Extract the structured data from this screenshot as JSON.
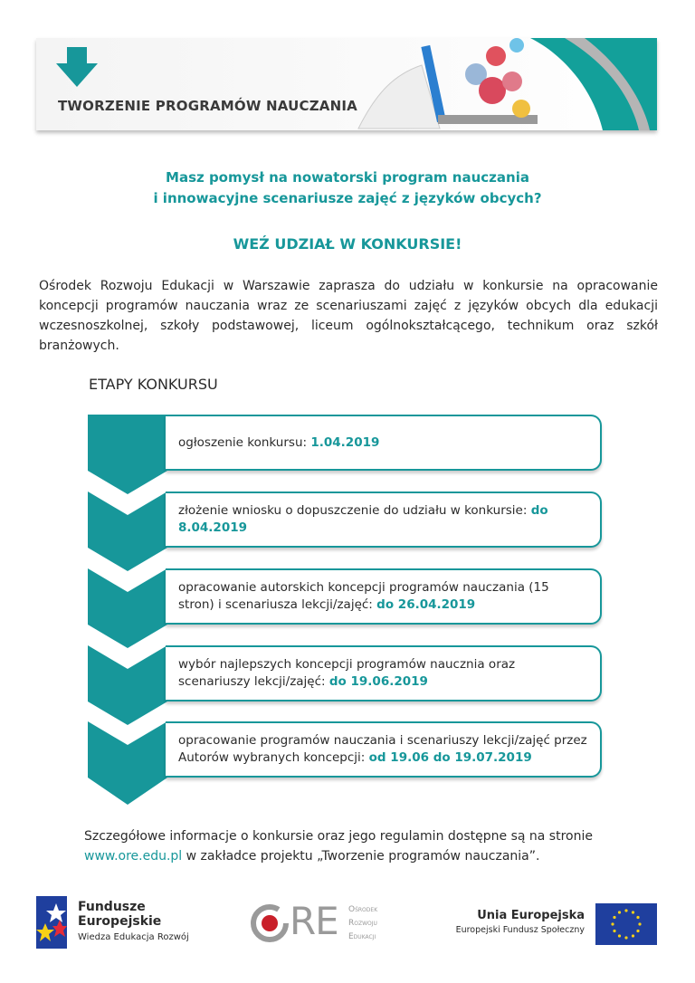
{
  "banner": {
    "title": "TWORZENIE PROGRAMÓW NAUCZANIA",
    "icon": "arrow-down-icon"
  },
  "headline": {
    "line1": "Masz pomysł na nowatorski program nauczania",
    "line2": "i innowacyjne scenariusze zajęć z języków obcych?",
    "cta": "WEŹ UDZIAŁ W KONKURSIE!"
  },
  "intro": "Ośrodek Rozwoju Edukacji w Warszawie zaprasza do udziału w konkursie na opracowanie koncepcji programów nauczania wraz ze scenariuszami zajęć z języków obcych dla edukacji wczesnoszkolnej, szkoły podstawowej, liceum ogólnokształcącego, technikum oraz szkół branżowych.",
  "stages": {
    "heading": "ETAPY KONKURSU",
    "items": [
      {
        "text": "ogłoszenie konkursu: ",
        "date": "1.04.2019"
      },
      {
        "text": "złożenie wniosku o dopuszczenie do udziału w konkursie: ",
        "date": "do 8.04.2019"
      },
      {
        "text": "opracowanie autorskich koncepcji programów nauczania (15 stron) i scenariusza lekcji/zajęć: ",
        "date": "do 26.04.2019"
      },
      {
        "text": "wybór najlepszych koncepcji programów naucznia oraz scenariuszy lekcji/zajęć: ",
        "date": "do 19.06.2019"
      },
      {
        "text": "opracowanie programów nauczania i scenariuszy lekcji/zajęć przez Autorów wybranych koncepcji: ",
        "date": "od 19.06 do 19.07.2019"
      }
    ]
  },
  "footer": {
    "before": "Szczegółowe informacje o konkursie oraz jego regulamin dostępne są na stronie",
    "link": "www.ore.edu.pl",
    "after": " w zakładce projektu „Tworzenie programów nauczania”."
  },
  "logos": {
    "fe": {
      "line1": "Fundusze",
      "line2": "Europejskie",
      "line3": "Wiedza Edukacja Rozwój"
    },
    "ore": {
      "mark": "ORE",
      "line1": "Ośrodek",
      "line2": "Rozwoju",
      "line3": "Edukacji"
    },
    "eu": {
      "line1": "Unia Europejska",
      "line2": "Europejski Fundusz Społeczny"
    }
  },
  "colors": {
    "accent": "#17979a",
    "eu_blue": "#1f3f9e",
    "ore_red": "#c9202a"
  }
}
